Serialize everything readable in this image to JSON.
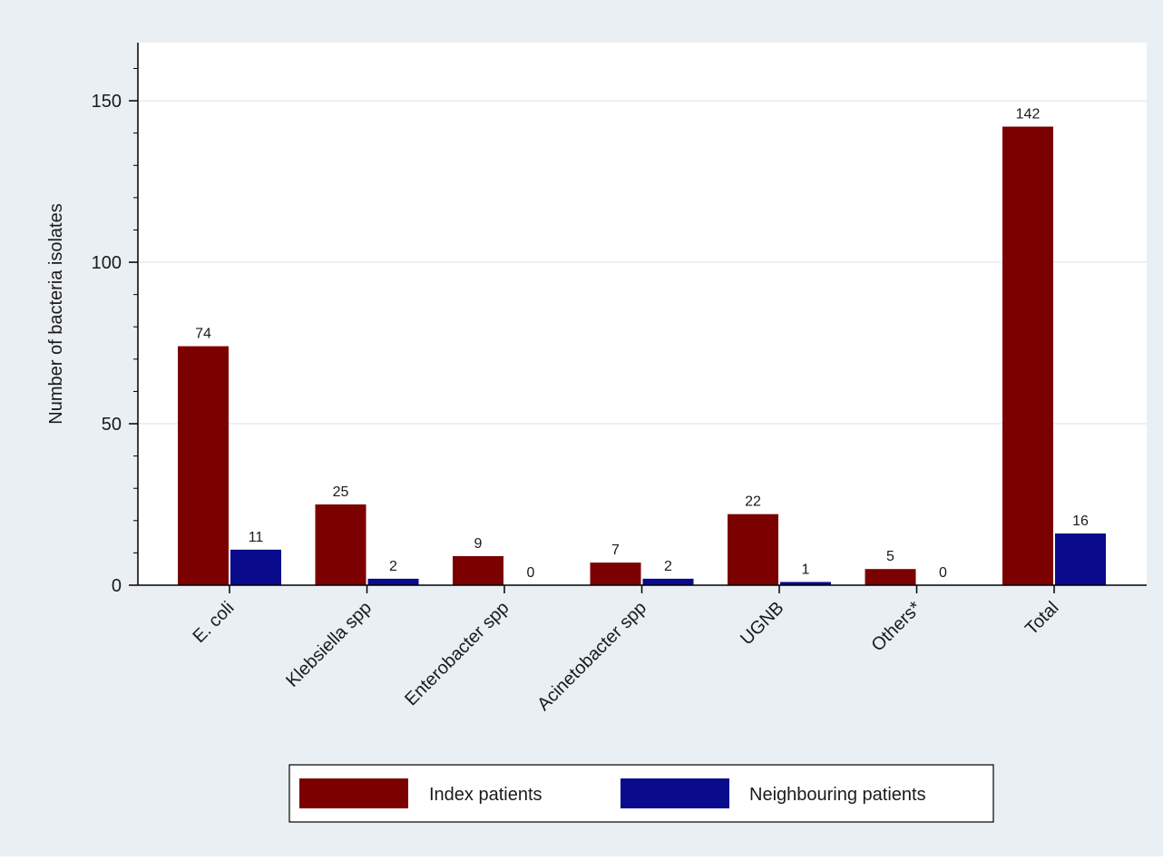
{
  "chart_data": {
    "type": "bar",
    "title": "",
    "xlabel": "",
    "ylabel": "Number of bacteria isolates",
    "categories": [
      "E. coli",
      "Klebsiella spp",
      "Enterobacter spp",
      "Acinetobacter spp",
      "UGNB",
      "Others*",
      "Total"
    ],
    "series": [
      {
        "name": "Index patients",
        "color": "#7b0000",
        "values": [
          74,
          25,
          9,
          7,
          22,
          5,
          142
        ],
        "labels": [
          "74",
          "25",
          "9",
          "7",
          "22",
          "5",
          "142"
        ]
      },
      {
        "name": "Neighbouring patients",
        "color": "#0a0a8c",
        "values": [
          11,
          2,
          0,
          2,
          1,
          0,
          16
        ],
        "labels": [
          "11",
          "2",
          "0",
          "2",
          "1",
          "0",
          "16"
        ]
      }
    ],
    "ylim": [
      0,
      168
    ],
    "yticks": [
      0,
      50,
      100,
      150
    ],
    "ytick_labels": [
      "0",
      "50",
      "100",
      "150"
    ],
    "minor_tick_step": 10,
    "grid": true,
    "legend": "bottom",
    "colors": {
      "outer_background": "#e9eff3",
      "plot_background": "#ffffff",
      "grid": "#e6ecef"
    }
  }
}
